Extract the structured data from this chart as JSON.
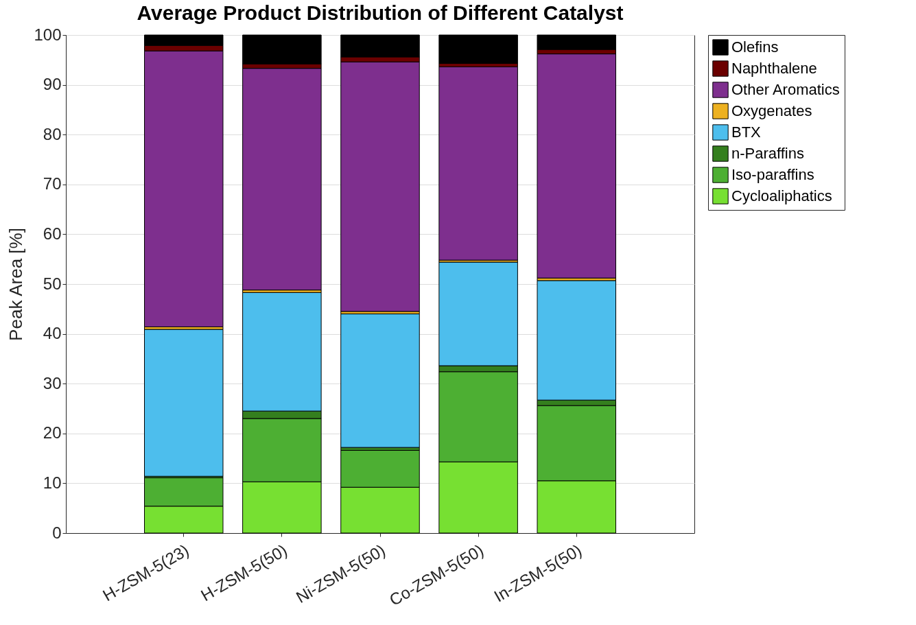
{
  "chart_data": {
    "type": "bar",
    "title": "Average Product Distribution of Different Catalyst",
    "ylabel": "Peak Area [%]",
    "categories": [
      "H-ZSM-5(23)",
      "H-ZSM-5(50)",
      "Ni-ZSM-5(50)",
      "Co-ZSM-5(50)",
      "In-ZSM-5(50)"
    ],
    "stacked": true,
    "ylim": [
      0,
      100
    ],
    "yticks": [
      0,
      10,
      20,
      30,
      40,
      50,
      60,
      70,
      80,
      90,
      100
    ],
    "grid": "y",
    "legend": "right",
    "series": [
      {
        "name": "Cycloaliphatics",
        "color": "#77e032",
        "values": [
          5.4,
          10.3,
          9.2,
          14.3,
          10.5
        ]
      },
      {
        "name": "Iso-paraffins",
        "color": "#4daf33",
        "values": [
          5.7,
          12.7,
          7.4,
          18.1,
          15.1
        ]
      },
      {
        "name": "n-Paraffins",
        "color": "#347f1e",
        "values": [
          0.3,
          1.5,
          0.6,
          1.2,
          1.1
        ]
      },
      {
        "name": "BTX",
        "color": "#4dbeed",
        "values": [
          29.5,
          23.8,
          26.8,
          20.8,
          24.0
        ]
      },
      {
        "name": "Oxygenates",
        "color": "#edb120",
        "values": [
          0.5,
          0.5,
          0.5,
          0.4,
          0.5
        ]
      },
      {
        "name": "Other Aromatics",
        "color": "#7e2f8e",
        "values": [
          55.4,
          44.5,
          50.1,
          38.8,
          45.0
        ]
      },
      {
        "name": "Naphthalene",
        "color": "#6b0000",
        "values": [
          1.1,
          0.9,
          1.0,
          0.7,
          0.9
        ]
      },
      {
        "name": "Olefins",
        "color": "#000000",
        "values": [
          2.1,
          5.8,
          4.4,
          5.7,
          2.9
        ]
      }
    ]
  }
}
